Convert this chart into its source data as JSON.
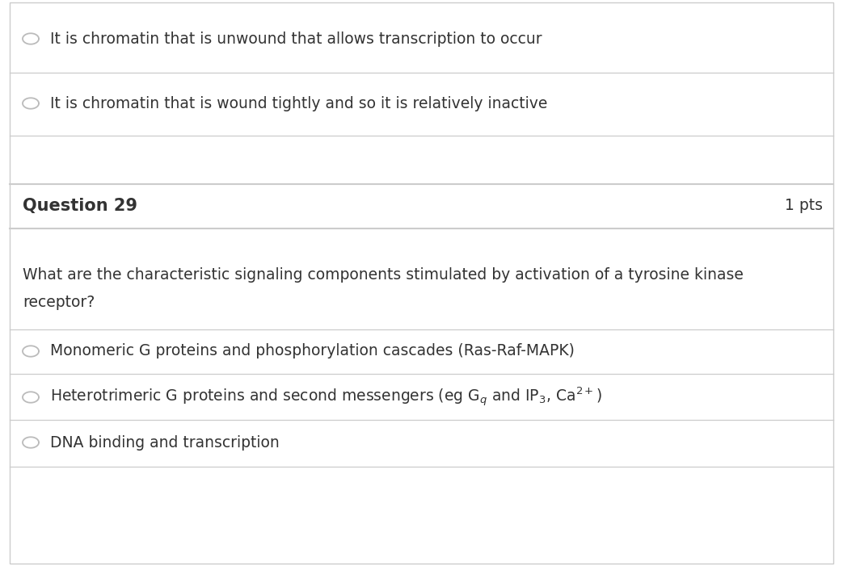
{
  "bg_color": "#ffffff",
  "border_color": "#cccccc",
  "text_color": "#333333",
  "circle_color": "#aaaaaa",
  "option1_text": "It is chromatin that is unwound that allows transcription to occur",
  "option2_text": "It is chromatin that is wound tightly and so it is relatively inactive",
  "question_label": "Question 29",
  "pts_label": "1 pts",
  "question_text_line1": "What are the characteristic signaling components stimulated by activation of a tyrosine kinase",
  "question_text_line2": "receptor?",
  "answer1": "Monomeric G proteins and phosphorylation cascades (Ras-Raf-MAPK)",
  "answer2": "Heterotrimeric G proteins and second messengers (eg G$_q$ and IP$_3$, Ca$^{2+}$)",
  "answer3": "DNA binding and transcription",
  "font_size": 13.5,
  "bold_font_size": 15,
  "pts_font_size": 13.5
}
